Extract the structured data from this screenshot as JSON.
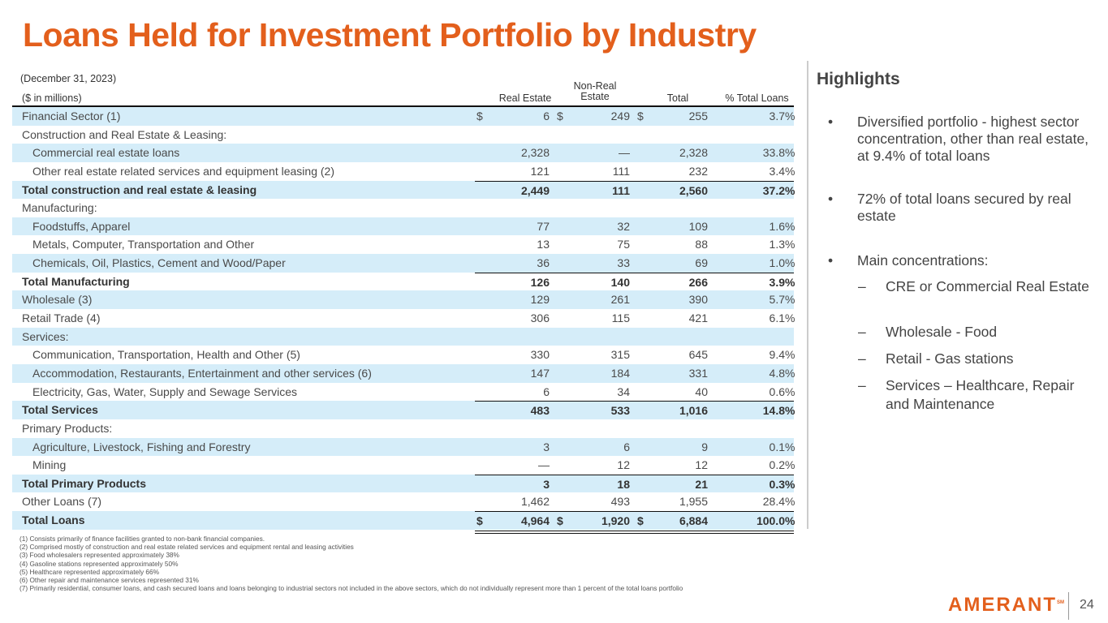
{
  "title": "Loans Held for Investment Portfolio by Industry",
  "as_of": "(December 31, 2023)",
  "units": "($ in millions)",
  "columns": {
    "real_estate": "Real Estate",
    "non_real_estate_1": "Non-Real",
    "non_real_estate_2": "Estate",
    "total": "Total",
    "pct": "% Total Loans"
  },
  "rows": [
    {
      "label": "Financial Sector (1)",
      "indent": false,
      "bold": false,
      "dollar": true,
      "re": "6",
      "nre": "249",
      "total": "255",
      "pct": "3.7"
    },
    {
      "label": "Construction and Real Estate & Leasing:",
      "indent": false,
      "bold": false
    },
    {
      "label": "Commercial real estate loans",
      "indent": true,
      "re": "2,328",
      "nre": "—",
      "total": "2,328",
      "pct": "33.8"
    },
    {
      "label": "Other real estate related services and equipment leasing (2)",
      "indent": true,
      "re": "121",
      "nre": "111",
      "total": "232",
      "pct": "3.4"
    },
    {
      "label": "Total construction and real estate & leasing",
      "bold": true,
      "line": true,
      "re": "2,449",
      "nre": "111",
      "total": "2,560",
      "pct": "37.2"
    },
    {
      "label": "Manufacturing:"
    },
    {
      "label": "Foodstuffs, Apparel",
      "indent": true,
      "re": "77",
      "nre": "32",
      "total": "109",
      "pct": "1.6"
    },
    {
      "label": "Metals, Computer, Transportation and Other",
      "indent": true,
      "re": "13",
      "nre": "75",
      "total": "88",
      "pct": "1.3"
    },
    {
      "label": "Chemicals, Oil, Plastics, Cement and Wood/Paper",
      "indent": true,
      "re": "36",
      "nre": "33",
      "total": "69",
      "pct": "1.0"
    },
    {
      "label": "Total Manufacturing",
      "bold": true,
      "line": true,
      "re": "126",
      "nre": "140",
      "total": "266",
      "pct": "3.9"
    },
    {
      "label": "Wholesale (3)",
      "re": "129",
      "nre": "261",
      "total": "390",
      "pct": "5.7"
    },
    {
      "label": "Retail Trade (4)",
      "re": "306",
      "nre": "115",
      "total": "421",
      "pct": "6.1"
    },
    {
      "label": "Services:"
    },
    {
      "label": "Communication, Transportation, Health and Other (5)",
      "indent": true,
      "re": "330",
      "nre": "315",
      "total": "645",
      "pct": "9.4"
    },
    {
      "label": "Accommodation, Restaurants, Entertainment and other services (6)",
      "indent": true,
      "re": "147",
      "nre": "184",
      "total": "331",
      "pct": "4.8"
    },
    {
      "label": "Electricity, Gas, Water, Supply and Sewage Services",
      "indent": true,
      "re": "6",
      "nre": "34",
      "total": "40",
      "pct": "0.6"
    },
    {
      "label": "Total Services",
      "bold": true,
      "line": true,
      "re": "483",
      "nre": "533",
      "total": "1,016",
      "pct": "14.8"
    },
    {
      "label": "Primary Products:"
    },
    {
      "label": "Agriculture, Livestock, Fishing and Forestry",
      "indent": true,
      "re": "3",
      "nre": "6",
      "total": "9",
      "pct": "0.1"
    },
    {
      "label": "Mining",
      "indent": true,
      "re": "—",
      "nre": "12",
      "total": "12",
      "pct": "0.2"
    },
    {
      "label": "Total Primary Products",
      "bold": true,
      "line": true,
      "re": "3",
      "nre": "18",
      "total": "21",
      "pct": "0.3"
    },
    {
      "label": "Other Loans (7)",
      "re": "1,462",
      "nre": "493",
      "total": "1,955",
      "pct": "28.4"
    },
    {
      "label": "Total Loans",
      "bold": true,
      "line": true,
      "double": true,
      "dollar": true,
      "re": "4,964",
      "nre": "1,920",
      "total": "6,884",
      "pct": "100.0"
    }
  ],
  "dollar_sign": "$",
  "pct_sign": "%",
  "highlights": {
    "title": "Highlights",
    "bullets": [
      "Diversified portfolio - highest sector concentration, other than real estate, at 9.4% of total loans",
      "72% of total loans secured by real estate",
      "Main concentrations:"
    ],
    "sub_bullets": [
      "CRE or Commercial Real Estate",
      "Wholesale - Food",
      "Retail - Gas stations",
      "Services – Healthcare, Repair and Maintenance"
    ]
  },
  "footnotes": [
    "(1) Consists primarily of finance facilities granted to non-bank financial companies.",
    "(2) Comprised mostly of construction and real estate related services and equipment rental and leasing activities",
    "(3) Food wholesalers represented approximately 38%",
    "(4) Gasoline stations represented approximately 50%",
    "(5) Healthcare represented approximately 66%",
    "(6) Other repair and maintenance services represented 31%",
    "(7) Primarily residential, consumer loans, and cash secured loans and loans belonging to industrial sectors not included in the above sectors, which do not individually represent more than 1 percent of the total loans portfolio"
  ],
  "logo": "AMERANT",
  "logo_mark": "SM",
  "page_number": "24",
  "colors": {
    "brand": "#e35f1c",
    "row_shade": "#d5edf9"
  }
}
